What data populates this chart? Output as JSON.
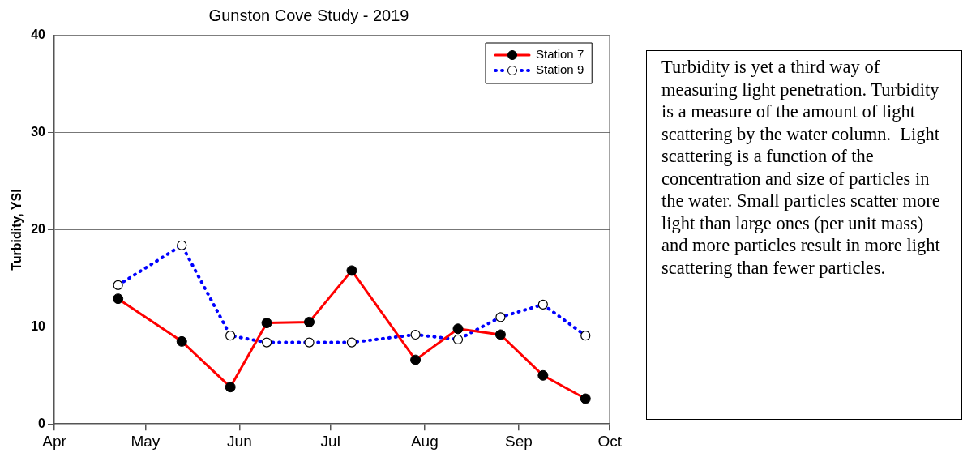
{
  "chart_data": {
    "type": "line",
    "title": "Gunston Cove Study - 2019",
    "ylabel": "Turbidity, YSI",
    "x": [
      "2019-04-22",
      "2019-05-13",
      "2019-05-29",
      "2019-06-10",
      "2019-06-24",
      "2019-07-08",
      "2019-07-29",
      "2019-08-12",
      "2019-08-26",
      "2019-09-09",
      "2019-09-23"
    ],
    "series": [
      {
        "name": "Station 7",
        "color": "#ff0000",
        "line_style": "solid",
        "values": [
          12.9,
          8.5,
          3.8,
          10.4,
          10.5,
          15.8,
          6.6,
          9.8,
          9.2,
          5.0,
          2.6
        ]
      },
      {
        "name": "Station 9",
        "color": "#0000ff",
        "line_style": "dotted",
        "values": [
          14.3,
          18.4,
          9.1,
          8.4,
          8.4,
          8.4,
          9.2,
          8.7,
          11.0,
          12.3,
          9.1
        ]
      }
    ],
    "marker": "circle",
    "xlim": [
      "2019-04-01",
      "2019-10-01"
    ],
    "xticks": [
      {
        "value": "2019-04-01",
        "label": "Apr"
      },
      {
        "value": "2019-05-01",
        "label": "May"
      },
      {
        "value": "2019-06-01",
        "label": "Jun"
      },
      {
        "value": "2019-07-01",
        "label": "Jul"
      },
      {
        "value": "2019-08-01",
        "label": "Aug"
      },
      {
        "value": "2019-09-01",
        "label": "Sep"
      },
      {
        "value": "2019-10-01",
        "label": "Oct"
      }
    ],
    "ylim": [
      0,
      40
    ],
    "yticks": [
      0,
      10,
      20,
      30,
      40
    ],
    "grid": "y",
    "legend": "top right",
    "annotations": [
      "Turbidity is yet a third way of measuring light penetration. Turbidity is a measure of the amount of light scattering by the water column.  Light scattering is a function of the concentration and size of particles in the water. Small particles scatter more light than large ones (per unit mass) and more particles result in more light scattering than fewer particles."
    ]
  }
}
